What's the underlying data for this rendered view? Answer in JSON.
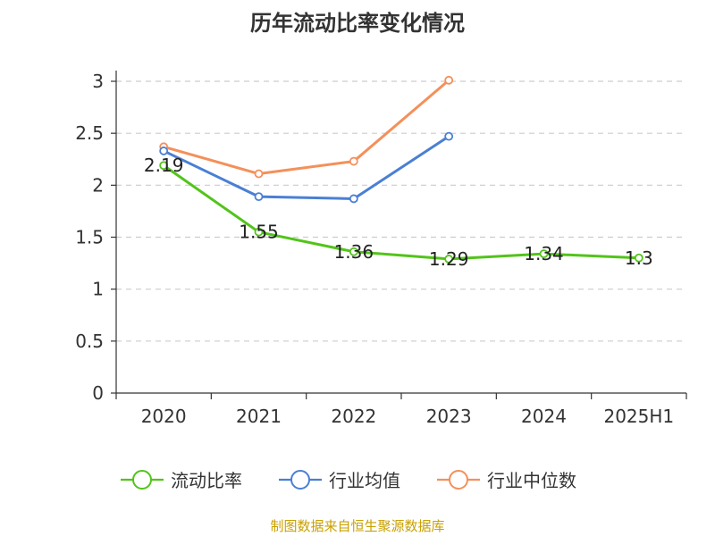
{
  "chart_data": {
    "type": "line",
    "title": "历年流动比率变化情况",
    "xlabel": "",
    "ylabel": "",
    "categories": [
      "2020",
      "2021",
      "2022",
      "2023",
      "2024",
      "2025H1"
    ],
    "ylim": [
      0,
      3
    ],
    "yticks": [
      "0",
      "0.5",
      "1",
      "1.5",
      "2",
      "2.5",
      "3"
    ],
    "grid": true,
    "legend_position": "bottom",
    "series": [
      {
        "name": "流动比率",
        "color": "#52c41a",
        "values": [
          2.19,
          1.55,
          1.36,
          1.29,
          1.34,
          1.3
        ],
        "labels": [
          "2.19",
          "1.55",
          "1.36",
          "1.29",
          "1.34",
          "1.3"
        ]
      },
      {
        "name": "行业均值",
        "color": "#4a7fd4",
        "values": [
          2.33,
          1.89,
          1.87,
          2.47,
          null,
          null
        ]
      },
      {
        "name": "行业中位数",
        "color": "#f4905a",
        "values": [
          2.37,
          2.11,
          2.23,
          3.01,
          null,
          null
        ]
      }
    ]
  },
  "source": "制图数据来自恒生聚源数据库"
}
